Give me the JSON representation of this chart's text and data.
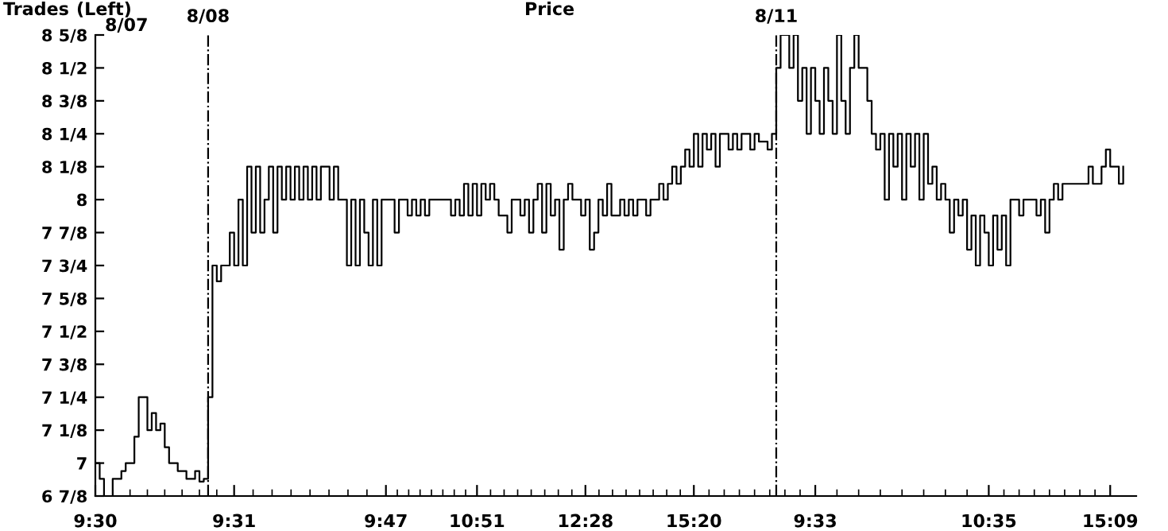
{
  "chart_data": {
    "type": "step",
    "title": "Price",
    "annotations": [
      "Trades",
      "(Left)",
      "8/07",
      "8/08",
      "8/11"
    ],
    "categories": [
      "9:30",
      null,
      null,
      null,
      null,
      null,
      null,
      null,
      null,
      null,
      null,
      null,
      null,
      null,
      null,
      null,
      null,
      null,
      null,
      null,
      null,
      null,
      null,
      null,
      null,
      null,
      null,
      null,
      null,
      null,
      null,
      null,
      "9:31",
      null,
      null,
      null,
      null,
      null,
      null,
      null,
      null,
      null,
      null,
      null,
      null,
      null,
      null,
      null,
      null,
      null,
      null,
      null,
      null,
      null,
      null,
      null,
      null,
      null,
      null,
      null,
      null,
      null,
      null,
      null,
      null,
      null,
      null,
      "9:47",
      null,
      null,
      null,
      null,
      null,
      null,
      null,
      null,
      null,
      null,
      null,
      null,
      null,
      null,
      null,
      null,
      null,
      null,
      null,
      null,
      "10:51",
      null,
      null,
      null,
      null,
      null,
      null,
      null,
      null,
      null,
      null,
      null,
      null,
      null,
      null,
      null,
      null,
      null,
      null,
      null,
      null,
      null,
      null,
      null,
      null,
      "12:28",
      null,
      null,
      null,
      null,
      null,
      null,
      null,
      null,
      null,
      null,
      null,
      null,
      null,
      null,
      null,
      null,
      null,
      null,
      null,
      null,
      null,
      null,
      null,
      null,
      "15:20",
      null,
      null,
      null,
      null,
      null,
      null,
      null,
      null,
      null,
      null,
      null,
      null,
      null,
      null,
      null,
      null,
      null,
      null,
      null,
      null,
      null,
      null,
      null,
      null,
      null,
      null,
      null,
      "9:33",
      null,
      null,
      null,
      null,
      null,
      null,
      null,
      null,
      null,
      null,
      null,
      null,
      null,
      null,
      null,
      null,
      null,
      null,
      null,
      null,
      null,
      null,
      null,
      null,
      null,
      null,
      null,
      null,
      null,
      null,
      null,
      null,
      null,
      null,
      null,
      null,
      null,
      null,
      null,
      "10:35",
      null,
      null,
      null,
      null,
      null,
      null,
      null,
      null,
      null,
      null,
      null,
      null,
      null,
      null,
      null,
      null,
      null,
      null,
      null,
      null,
      null,
      null,
      null,
      null,
      null,
      null,
      null,
      "15:09",
      null,
      null,
      null
    ],
    "ylim": [
      6.875,
      8.625
    ],
    "yticks": [
      {
        "value": 6.875,
        "label": "6 7/8"
      },
      {
        "value": 7,
        "label": "7"
      },
      {
        "value": 7.125,
        "label": "7 1/8"
      },
      {
        "value": 7.25,
        "label": "7 1/4"
      },
      {
        "value": 7.375,
        "label": "7 3/8"
      },
      {
        "value": 7.5,
        "label": "7 1/2"
      },
      {
        "value": 7.625,
        "label": "7 5/8"
      },
      {
        "value": 7.75,
        "label": "7 3/4"
      },
      {
        "value": 7.875,
        "label": "7 7/8"
      },
      {
        "value": 8,
        "label": "8"
      },
      {
        "value": 8.125,
        "label": "8 1/8"
      },
      {
        "value": 8.25,
        "label": "8 1/4"
      },
      {
        "value": 8.375,
        "label": "8 3/8"
      },
      {
        "value": 8.5,
        "label": "8 1/2"
      },
      {
        "value": 8.625,
        "label": "8 5/8"
      }
    ],
    "grid": false,
    "legend": false,
    "marker": "none",
    "line_style": "solid",
    "series": [
      {
        "color": "#000000",
        "values": [
          7.0,
          6.94,
          6.875,
          6.875,
          6.94,
          6.94,
          6.97,
          7.0,
          7.0,
          7.1,
          7.25,
          7.25,
          7.125,
          7.19,
          7.125,
          7.15,
          7.06,
          7.0,
          7.0,
          6.97,
          6.97,
          6.94,
          6.94,
          6.97,
          6.93,
          6.94,
          7.25,
          7.75,
          7.69,
          7.75,
          7.75,
          7.875,
          7.75,
          8.0,
          7.75,
          8.125,
          7.875,
          8.125,
          7.875,
          8.0,
          8.125,
          7.875,
          8.125,
          8.0,
          8.125,
          8.0,
          8.125,
          8.0,
          8.125,
          8.0,
          8.125,
          8.0,
          8.125,
          8.125,
          8.0,
          8.125,
          8.0,
          8.0,
          7.75,
          8.0,
          7.75,
          8.0,
          7.875,
          7.75,
          8.0,
          7.75,
          8.0,
          8.0,
          8.0,
          7.875,
          8.0,
          8.0,
          7.94,
          8.0,
          7.94,
          8.0,
          7.94,
          8.0,
          8.0,
          8.0,
          8.0,
          8.0,
          7.94,
          8.0,
          7.94,
          8.06,
          7.94,
          8.06,
          7.94,
          8.06,
          8.0,
          8.06,
          8.0,
          7.94,
          7.94,
          7.875,
          8.0,
          8.0,
          7.94,
          8.0,
          7.875,
          8.0,
          8.06,
          7.875,
          8.06,
          7.94,
          8.0,
          7.81,
          8.0,
          8.06,
          8.0,
          8.0,
          7.94,
          8.0,
          7.81,
          7.875,
          8.0,
          7.94,
          8.06,
          7.94,
          7.94,
          8.0,
          7.94,
          8.0,
          7.94,
          8.0,
          8.0,
          7.94,
          8.0,
          8.0,
          8.06,
          8.0,
          8.06,
          8.125,
          8.06,
          8.125,
          8.19,
          8.125,
          8.25,
          8.125,
          8.25,
          8.19,
          8.25,
          8.125,
          8.25,
          8.25,
          8.19,
          8.25,
          8.19,
          8.25,
          8.25,
          8.19,
          8.25,
          8.22,
          8.22,
          8.19,
          8.25,
          8.5,
          8.625,
          8.625,
          8.5,
          8.625,
          8.375,
          8.5,
          8.25,
          8.5,
          8.375,
          8.25,
          8.5,
          8.375,
          8.25,
          8.625,
          8.375,
          8.25,
          8.5,
          8.625,
          8.5,
          8.5,
          8.375,
          8.25,
          8.19,
          8.25,
          8.0,
          8.25,
          8.125,
          8.25,
          8.0,
          8.25,
          8.125,
          8.25,
          8.0,
          8.25,
          8.06,
          8.125,
          8.0,
          8.06,
          8.0,
          7.875,
          8.0,
          7.94,
          8.0,
          7.81,
          7.94,
          7.75,
          7.94,
          7.875,
          7.75,
          7.94,
          7.81,
          7.94,
          7.75,
          8.0,
          8.0,
          7.94,
          8.0,
          8.0,
          8.0,
          7.94,
          8.0,
          7.875,
          8.0,
          8.06,
          8.0,
          8.06,
          8.06,
          8.06,
          8.06,
          8.06,
          8.06,
          8.125,
          8.06,
          8.06,
          8.125,
          8.19,
          8.125,
          8.125,
          8.06,
          8.125
        ]
      }
    ]
  }
}
